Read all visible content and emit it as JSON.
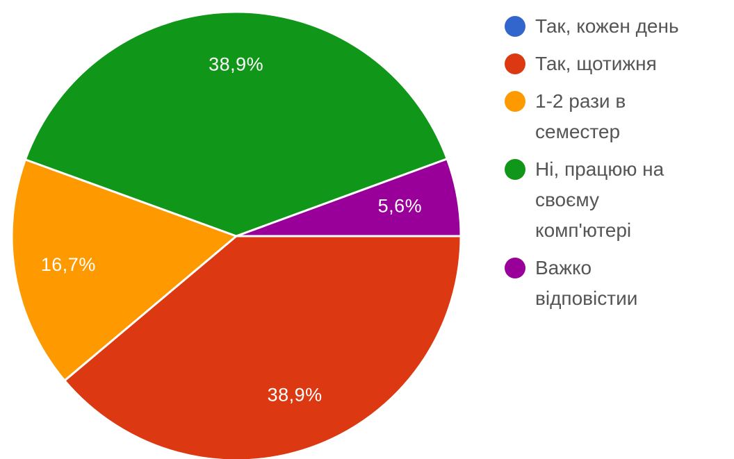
{
  "chart_data": {
    "type": "pie",
    "title": "",
    "legend_position": "right",
    "slices": [
      {
        "label": "Так, кожен день",
        "legend_text": "Так, кожен день",
        "value": 0,
        "value_label": "",
        "color": "#3366cc"
      },
      {
        "label": "Так, щотижня",
        "legend_text": "Так, щотижня",
        "value": 38.9,
        "value_label": "38,9%",
        "color": "#dc3912"
      },
      {
        "label": "1-2 рази в семестер",
        "legend_text": "1-2 рази в\nсеместер",
        "value": 16.7,
        "value_label": "16,7%",
        "color": "#ff9900"
      },
      {
        "label": "Ні, працюю на своєму комп'ютері",
        "legend_text": "Ні, працюю на\nсвоєму\nкомп'ютері",
        "value": 38.9,
        "value_label": "38,9%",
        "color": "#109618"
      },
      {
        "label": "Важко відповістии",
        "legend_text": "Важко\nвідповістии",
        "value": 5.6,
        "value_label": "5,6%",
        "color": "#990099"
      }
    ]
  }
}
